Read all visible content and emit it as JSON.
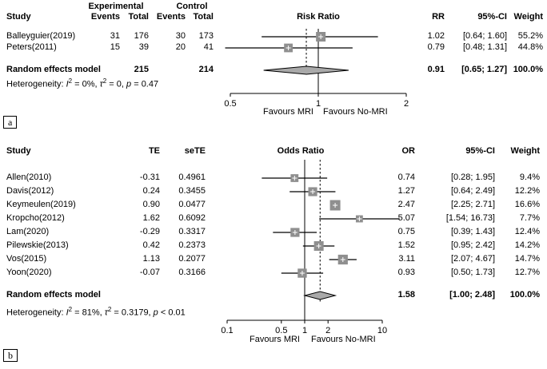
{
  "chart_data": {
    "type": "forest",
    "colors": {
      "marker": "#8f8f8f",
      "marker_plus": "#ffffff",
      "diamond": "#a9a9a9",
      "line": "#000000",
      "text": "#000000",
      "background": "#ffffff"
    },
    "panels": [
      {
        "label": "a",
        "headers": {
          "study": "Study",
          "experimental": "Experimental",
          "control": "Control",
          "events": "Events",
          "total": "Total",
          "effect_plot": "Risk Ratio",
          "effect": "RR",
          "ci": "95%-CI",
          "weight": "Weight"
        },
        "studies": [
          {
            "name": "Balleyguier(2019)",
            "exp_events": "31",
            "exp_total": "176",
            "ctrl_events": "30",
            "ctrl_total": "173",
            "effect": 1.02,
            "ci_low": 0.64,
            "ci_high": 1.6,
            "effect_text": "1.02",
            "ci_text": "[0.64; 1.60]",
            "weight": 55.2,
            "weight_text": "55.2%"
          },
          {
            "name": "Peters(2011)",
            "exp_events": "15",
            "exp_total": "39",
            "ctrl_events": "20",
            "ctrl_total": "41",
            "effect": 0.79,
            "ci_low": 0.48,
            "ci_high": 1.31,
            "effect_text": "0.79",
            "ci_text": "[0.48; 1.31]",
            "weight": 44.8,
            "weight_text": "44.8%"
          }
        ],
        "summary": {
          "name": "Random effects model",
          "exp_total": "215",
          "ctrl_total": "214",
          "effect": 0.91,
          "ci_low": 0.65,
          "ci_high": 1.27,
          "effect_text": "0.91",
          "ci_text": "[0.65; 1.27]",
          "weight_text": "100.0%"
        },
        "heterogeneity": [
          {
            "t": "Heterogeneity: "
          },
          {
            "t": "I",
            "i": true
          },
          {
            "t": "2",
            "sup": true
          },
          {
            "t": " = 0%, "
          },
          {
            "t": "τ",
            "i": true
          },
          {
            "t": "2",
            "sup": true
          },
          {
            "t": " = 0, "
          },
          {
            "t": "p",
            "i": true
          },
          {
            "t": " = 0.47"
          }
        ],
        "axis": {
          "scale": "log2",
          "ticks": [
            {
              "v": 0.5,
              "label": "0.5"
            },
            {
              "v": 1,
              "label": "1"
            },
            {
              "v": 2,
              "label": "2"
            }
          ]
        },
        "favours_left": "Favours MRI",
        "favours_right": "Favours No-MRI"
      },
      {
        "label": "b",
        "headers": {
          "study": "Study",
          "te": "TE",
          "sete": "seTE",
          "effect_plot": "Odds Ratio",
          "effect": "OR",
          "ci": "95%-CI",
          "weight": "Weight"
        },
        "studies": [
          {
            "name": "Allen(2010)",
            "te": "-0.31",
            "sete": "0.4961",
            "effect": 0.74,
            "ci_low": 0.28,
            "ci_high": 1.95,
            "effect_text": "0.74",
            "ci_text": "[0.28; 1.95]",
            "weight": 9.4,
            "weight_text": "9.4%"
          },
          {
            "name": "Davis(2012)",
            "te": "0.24",
            "sete": "0.3455",
            "effect": 1.27,
            "ci_low": 0.64,
            "ci_high": 2.49,
            "effect_text": "1.27",
            "ci_text": "[0.64; 2.49]",
            "weight": 12.2,
            "weight_text": "12.2%"
          },
          {
            "name": "Keymeulen(2019)",
            "te": "0.90",
            "sete": "0.0477",
            "effect": 2.47,
            "ci_low": 2.25,
            "ci_high": 2.71,
            "effect_text": "2.47",
            "ci_text": "[2.25; 2.71]",
            "weight": 16.6,
            "weight_text": "16.6%"
          },
          {
            "name": "Kropcho(2012)",
            "te": "1.62",
            "sete": "0.6092",
            "effect": 5.07,
            "ci_low": 1.54,
            "ci_high": 16.73,
            "effect_text": "5.07",
            "ci_text": "[1.54; 16.73]",
            "weight": 7.7,
            "weight_text": "7.7%"
          },
          {
            "name": "Lam(2020)",
            "te": "-0.29",
            "sete": "0.3317",
            "effect": 0.75,
            "ci_low": 0.39,
            "ci_high": 1.43,
            "effect_text": "0.75",
            "ci_text": "[0.39; 1.43]",
            "weight": 12.4,
            "weight_text": "12.4%"
          },
          {
            "name": "Pilewskie(2013)",
            "te": "0.42",
            "sete": "0.2373",
            "effect": 1.52,
            "ci_low": 0.95,
            "ci_high": 2.42,
            "effect_text": "1.52",
            "ci_text": "[0.95; 2.42]",
            "weight": 14.2,
            "weight_text": "14.2%"
          },
          {
            "name": "Vos(2015)",
            "te": "1.13",
            "sete": "0.2077",
            "effect": 3.11,
            "ci_low": 2.07,
            "ci_high": 4.67,
            "effect_text": "3.11",
            "ci_text": "[2.07; 4.67]",
            "weight": 14.7,
            "weight_text": "14.7%"
          },
          {
            "name": "Yoon(2020)",
            "te": "-0.07",
            "sete": "0.3166",
            "effect": 0.93,
            "ci_low": 0.5,
            "ci_high": 1.73,
            "effect_text": "0.93",
            "ci_text": "[0.50; 1.73]",
            "weight": 12.7,
            "weight_text": "12.7%"
          }
        ],
        "summary": {
          "name": "Random effects model",
          "effect": 1.58,
          "ci_low": 1.0,
          "ci_high": 2.48,
          "effect_text": "1.58",
          "ci_text": "[1.00; 2.48]",
          "weight_text": "100.0%"
        },
        "heterogeneity": [
          {
            "t": "Heterogeneity: "
          },
          {
            "t": "I",
            "i": true
          },
          {
            "t": "2",
            "sup": true
          },
          {
            "t": " = 81%, "
          },
          {
            "t": "τ",
            "i": true
          },
          {
            "t": "2",
            "sup": true
          },
          {
            "t": " = 0.3179, "
          },
          {
            "t": "p",
            "i": true
          },
          {
            "t": " < 0.01"
          }
        ],
        "axis": {
          "scale": "log10",
          "ticks": [
            {
              "v": 0.1,
              "label": "0.1"
            },
            {
              "v": 0.5,
              "label": "0.5"
            },
            {
              "v": 1,
              "label": "1"
            },
            {
              "v": 2,
              "label": "2"
            },
            {
              "v": 10,
              "label": "10"
            }
          ]
        },
        "favours_left": "Favours MRI",
        "favours_right": "Favours No-MRI"
      }
    ]
  }
}
